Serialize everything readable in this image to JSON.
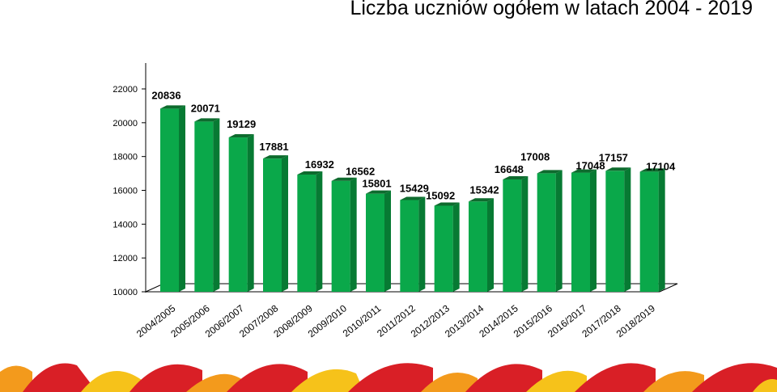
{
  "title": "Liczba uczniów ogółem w latach 2004 - 2019",
  "colors": {
    "bar_front": "#0aa84a",
    "bar_side": "#077a33",
    "bar_top": "#0e6b2e",
    "axis": "#000000",
    "band_red": "#d91f26",
    "band_orange": "#f39a1c",
    "band_yellow": "#f6c21a"
  },
  "chart_data": {
    "type": "bar",
    "categories": [
      "2004/2005",
      "2005/2006",
      "2006/2007",
      "2007/2008",
      "2008/2009",
      "2009/2010",
      "2010/2011",
      "2011/2012",
      "2012/2013",
      "2013/2014",
      "2014/2015",
      "2015/2016",
      "2016/2017",
      "2017/2018",
      "2018/2019"
    ],
    "values": [
      20836,
      20071,
      19129,
      17881,
      16932,
      16562,
      15801,
      15429,
      15092,
      15342,
      16648,
      17008,
      17048,
      17157,
      17104
    ],
    "title": "Liczba uczniów ogółem w latach 2004 - 2019",
    "xlabel": "",
    "ylabel": "",
    "ylim": [
      10000,
      22000
    ],
    "yticks": [
      "10000",
      "12000",
      "14000",
      "16000",
      "18000",
      "20000",
      "22000"
    ],
    "grid": false,
    "three_d": true
  }
}
